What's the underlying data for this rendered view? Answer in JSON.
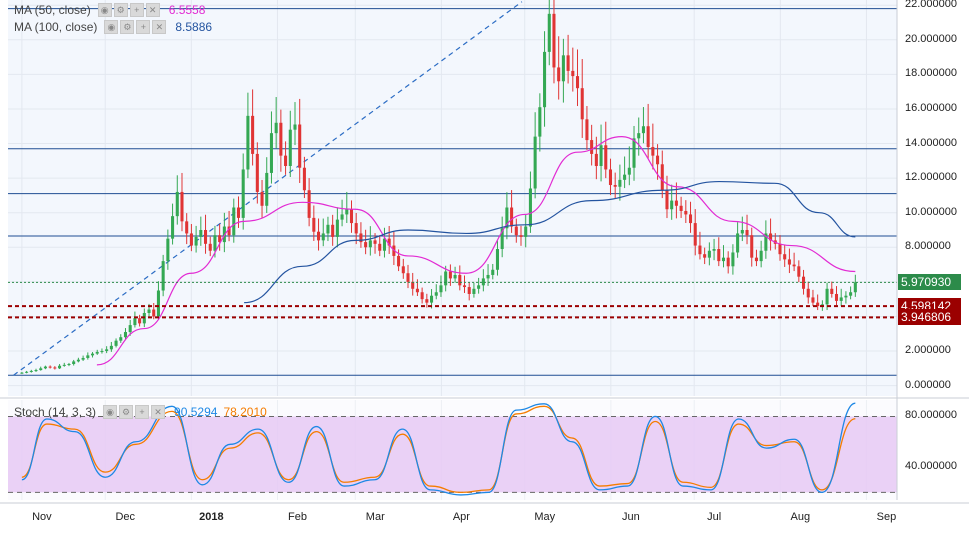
{
  "legend": {
    "ma50": {
      "label": "MA (50, close)",
      "value": "6.5558",
      "color": "#e22bd3"
    },
    "ma100": {
      "label": "MA (100, close)",
      "value": "8.5886",
      "color": "#2454a0"
    },
    "stoch": {
      "label": "Stoch (14, 3, 3)",
      "k": "90.5294",
      "d": "78.2010",
      "k_color": "#1e88e5",
      "d_color": "#f57c00"
    }
  },
  "price_tags": {
    "last": "5.970930",
    "support1": "4.598142",
    "support2": "3.946806"
  },
  "colors": {
    "up": "#34a853",
    "down": "#e03434",
    "hline": "#1f4e93",
    "support": "#9b0000",
    "stoch_band": "#e6c9f5",
    "plot_bg": "#f3f7fd"
  },
  "chart_data": [
    {
      "type": "candlestick",
      "title": "",
      "xlabel": "",
      "ylabel": "",
      "ylim": [
        -0.6,
        22.3
      ],
      "y_ticks": [
        "22.000000",
        "20.000000",
        "18.000000",
        "16.000000",
        "14.000000",
        "12.000000",
        "10.000000",
        "8.000000",
        "6.000000",
        "4.000000",
        "2.000000",
        "0.000000"
      ],
      "x_ticks": [
        "Nov",
        "Dec",
        "2018",
        "Feb",
        "Mar",
        "Apr",
        "May",
        "Jun",
        "Jul",
        "Aug",
        "Sep"
      ],
      "horizontal_levels": [
        21.8,
        13.7,
        11.1,
        8.65,
        0.6
      ],
      "support_levels": [
        4.598142,
        3.946806
      ],
      "last_price": 5.97093,
      "series": [
        {
          "name": "MA (50, close)",
          "x": [
            "2017-11-28",
            "2017-12-15",
            "2018-01-01",
            "2018-01-20",
            "2018-02-10",
            "2018-03-01",
            "2018-03-20",
            "2018-04-10",
            "2018-05-01",
            "2018-05-20",
            "2018-06-05",
            "2018-06-25",
            "2018-07-15",
            "2018-08-05",
            "2018-08-28"
          ],
          "values": [
            1.2,
            3.3,
            6.5,
            9.5,
            10.6,
            10.2,
            7.5,
            6.5,
            9.9,
            13.5,
            14.4,
            11.5,
            9.5,
            8.1,
            6.6
          ]
        },
        {
          "name": "MA (100, close)",
          "x": [
            "2018-01-20",
            "2018-02-10",
            "2018-03-01",
            "2018-03-20",
            "2018-04-10",
            "2018-05-01",
            "2018-05-25",
            "2018-06-20",
            "2018-07-10",
            "2018-07-30",
            "2018-08-15",
            "2018-08-28"
          ],
          "values": [
            4.8,
            6.9,
            8.4,
            9.0,
            8.8,
            9.3,
            10.7,
            11.3,
            11.8,
            11.7,
            10.0,
            8.6
          ]
        }
      ],
      "candles_close": [
        0.75,
        0.8,
        0.85,
        0.9,
        1.0,
        1.1,
        1.05,
        1.0,
        1.15,
        1.2,
        1.25,
        1.4,
        1.5,
        1.6,
        1.75,
        1.85,
        1.95,
        2.0,
        2.1,
        2.3,
        2.6,
        2.8,
        3.1,
        3.5,
        3.9,
        3.6,
        4.2,
        4.4,
        4.0,
        5.5,
        7.2,
        8.5,
        9.8,
        11.2,
        9.5,
        8.8,
        8.1,
        8.6,
        9.0,
        8.2,
        7.8,
        8.7,
        8.3,
        9.2,
        8.7,
        10.3,
        9.7,
        12.5,
        15.6,
        13.4,
        11.2,
        10.4,
        12.3,
        14.6,
        15.2,
        13.3,
        12.7,
        14.8,
        15.1,
        12.6,
        11.3,
        9.7,
        8.9,
        8.4,
        8.8,
        9.3,
        8.6,
        9.6,
        9.9,
        10.2,
        9.4,
        8.8,
        8.3,
        8.0,
        8.4,
        8.2,
        7.8,
        8.5,
        8.1,
        7.5,
        6.9,
        6.5,
        6.0,
        5.6,
        5.4,
        5.0,
        4.8,
        5.2,
        5.4,
        5.8,
        6.6,
        6.2,
        6.4,
        5.8,
        5.7,
        5.3,
        5.6,
        5.8,
        6.2,
        6.4,
        6.7,
        7.9,
        9.1,
        10.3,
        9.2,
        8.7,
        8.6,
        9.2,
        11.4,
        14.4,
        16.1,
        19.3,
        21.5,
        18.4,
        17.6,
        19.1,
        18.2,
        17.9,
        17.2,
        15.4,
        14.2,
        13.4,
        12.7,
        13.9,
        12.5,
        11.6,
        11.5,
        11.9,
        12.2,
        12.6,
        14.3,
        14.6,
        15.0,
        13.8,
        13.3,
        12.8,
        11.3,
        10.2,
        10.7,
        10.4,
        10.1,
        9.9,
        9.4,
        8.1,
        7.6,
        7.4,
        7.8,
        7.9,
        7.2,
        7.4,
        6.9,
        7.7,
        8.8,
        9.0,
        8.7,
        7.4,
        7.2,
        7.8,
        8.8,
        8.4,
        8.2,
        7.6,
        7.3,
        7.0,
        6.9,
        6.3,
        5.6,
        5.1,
        4.8,
        4.6,
        4.7,
        5.6,
        5.3,
        4.9,
        5.1,
        5.2,
        5.4,
        5.97
      ]
    },
    {
      "type": "line",
      "title": "",
      "name": "Stoch (14, 3, 3)",
      "ylim": [
        14,
        93
      ],
      "y_ticks": [
        "80.000000",
        "40.000000"
      ],
      "bands": [
        80,
        20
      ],
      "x": [
        "2017-11-01",
        "2017-11-10",
        "2017-11-20",
        "2017-12-01",
        "2017-12-12",
        "2017-12-25",
        "2018-01-05",
        "2018-01-15",
        "2018-01-25",
        "2018-02-05",
        "2018-02-15",
        "2018-02-25",
        "2018-03-08",
        "2018-03-18",
        "2018-03-28",
        "2018-04-08",
        "2018-04-18",
        "2018-04-28",
        "2018-05-08",
        "2018-05-18",
        "2018-05-28",
        "2018-06-07",
        "2018-06-17",
        "2018-06-27",
        "2018-07-07",
        "2018-07-17",
        "2018-07-27",
        "2018-08-06",
        "2018-08-16",
        "2018-08-28"
      ],
      "series": [
        {
          "name": "%K",
          "values": [
            30,
            78,
            68,
            32,
            60,
            88,
            26,
            58,
            70,
            28,
            72,
            25,
            30,
            70,
            22,
            18,
            20,
            85,
            90,
            60,
            22,
            25,
            80,
            25,
            22,
            78,
            55,
            62,
            20,
            90.5
          ]
        },
        {
          "name": "%D",
          "values": [
            32,
            74,
            70,
            36,
            58,
            84,
            30,
            55,
            67,
            30,
            68,
            28,
            32,
            66,
            25,
            20,
            22,
            82,
            88,
            63,
            25,
            27,
            76,
            28,
            24,
            74,
            57,
            60,
            22,
            78.2
          ]
        }
      ]
    }
  ]
}
